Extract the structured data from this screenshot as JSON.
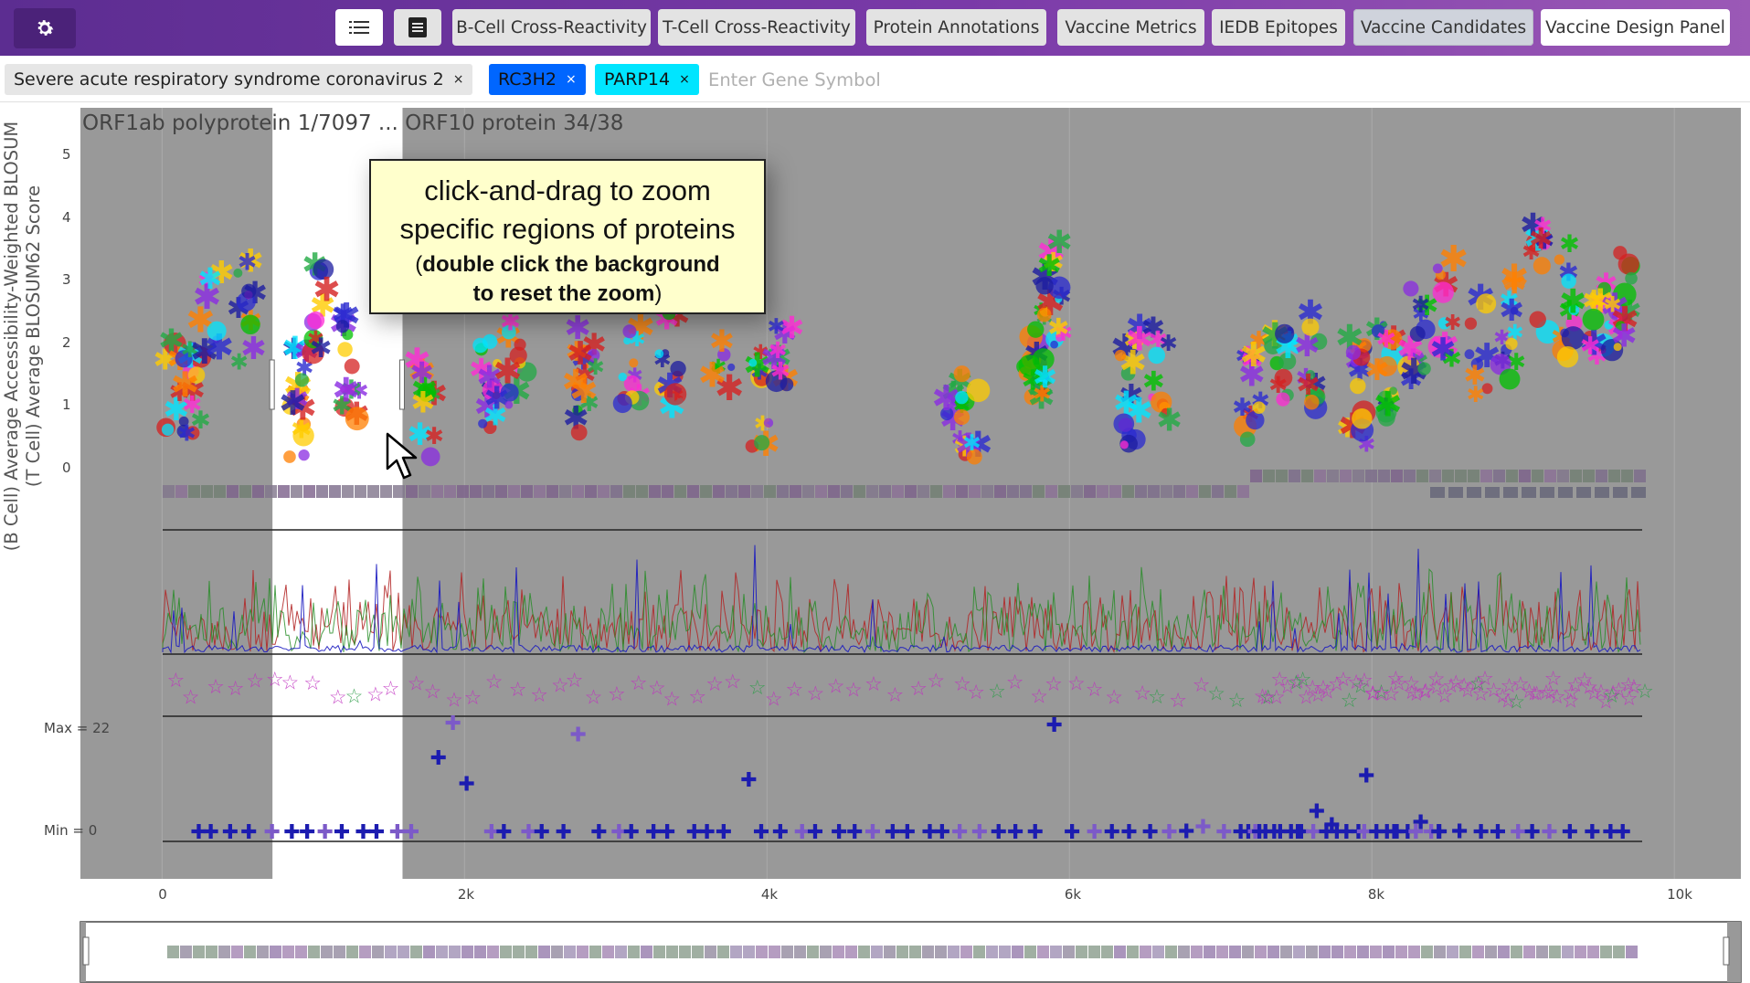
{
  "navbar": {
    "settings_icon": "gear-icon",
    "list_icon": "list-icon",
    "table_icon": "table-icon",
    "buttons": [
      "B-Cell Cross-Reactivity",
      "T-Cell Cross-Reactivity",
      "Protein Annotations",
      "Vaccine Metrics",
      "IEDB Epitopes",
      "Vaccine Candidates",
      "Vaccine Design Panel"
    ],
    "active": "Vaccine Candidates"
  },
  "tags": {
    "organism": "Severe acute respiratory syndrome coronavirus 2",
    "gene_1": "RC3H2",
    "gene_2": "PARP14",
    "remove_glyph": "×",
    "gene_1_color": "#0066ff",
    "gene_2_color": "#00e5ff"
  },
  "gene_input": {
    "placeholder": "Enter Gene Symbol"
  },
  "plot": {
    "title": "ORF1ab polyprotein 1/7097 ... ORF10 protein 34/38",
    "ylabel_line1": "(B Cell) Average Accessibility-Weighted BLOSUM",
    "ylabel_line2": "(T Cell) Average BLOSUM62 Score",
    "yticks": [
      "5",
      "4",
      "3",
      "2",
      "1",
      "0"
    ],
    "xticks": [
      "0",
      "2k",
      "4k",
      "6k",
      "8k",
      "10k"
    ],
    "max_label": "Max = 22",
    "min_label": "Min = 0",
    "x_range": [
      -540,
      10440
    ],
    "y_range": [
      -0.3,
      5.5
    ],
    "selected_range": [
      730,
      1590
    ],
    "background": "#999999"
  },
  "callout": {
    "line1": "click-and-drag to zoom",
    "line2": "specific regions of proteins",
    "line3_open": "(",
    "line3_bold": "double click the background",
    "line4_bold": "to reset the zoom",
    "line4_close": ")"
  },
  "chart_data": {
    "type": "scatter",
    "title": "ORF1ab polyprotein 1/7097 ... ORF10 protein 34/38",
    "xlabel": "",
    "ylabel": "(B Cell) Average Accessibility-Weighted BLOSUM / (T Cell) Average BLOSUM62 Score",
    "xlim": [
      -540,
      10440
    ],
    "ylim": [
      -0.3,
      5.5
    ],
    "x_ticks": [
      0,
      2000,
      4000,
      6000,
      8000,
      10000
    ],
    "y_ticks": [
      0,
      1,
      2,
      3,
      4,
      5
    ],
    "grid": true,
    "series": [
      {
        "x": [
          60,
          200,
          330,
          550,
          900,
          1050,
          1250,
          1750,
          2150,
          2350,
          2800,
          3100,
          3350,
          3700,
          3950,
          4100,
          5250,
          5350,
          5750,
          5800,
          5900,
          6400,
          6600,
          7200,
          7400,
          7600,
          7900,
          8100,
          8300,
          8500,
          8700,
          8900,
          9100,
          9300,
          9500,
          9650
        ],
        "y": [
          1.2,
          1.3,
          2.4,
          2.3,
          1.0,
          2.5,
          1.5,
          1.0,
          1.3,
          1.8,
          1.2,
          1.8,
          1.6,
          1.9,
          1.0,
          2.0,
          0.9,
          0.8,
          1.3,
          1.8,
          2.6,
          1.2,
          1.4,
          1.3,
          1.7,
          1.8,
          1.1,
          1.6,
          2.0,
          2.4,
          1.8,
          2.2,
          2.9,
          2.6,
          2.0,
          2.7
        ]
      }
    ],
    "max": 22,
    "min": 0
  }
}
